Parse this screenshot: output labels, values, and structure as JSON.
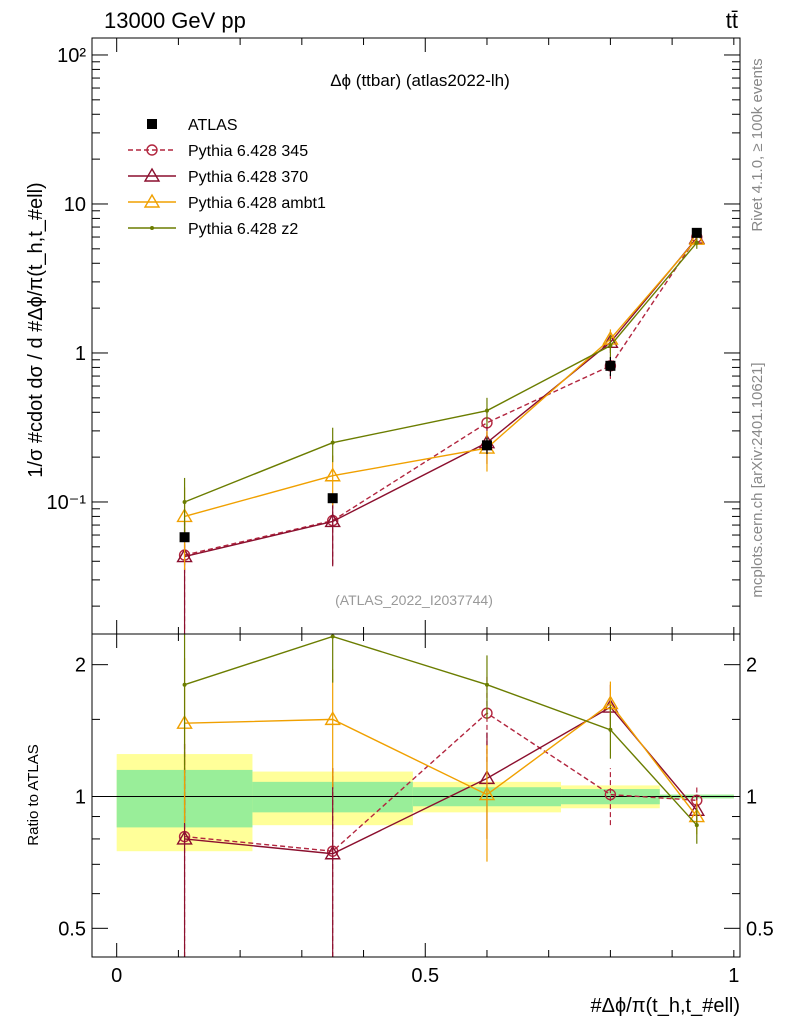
{
  "header": {
    "energy": "13000 GeV pp",
    "process": "tt̄"
  },
  "side": {
    "rivet": "Rivet 4.1.0, ≥ 100k events",
    "arxiv": "mcplots.cern.ch [arXiv:2401.10621]"
  },
  "main": {
    "title": "Δϕ (ttbar) (atlas2022-lh)",
    "analysis": "(ATLAS_2022_I2037744)"
  },
  "chart_data": {
    "type": "line",
    "title": "Δϕ (ttbar) (atlas2022-lh)",
    "ylabel_top": "1/σ #cdot dσ / d #Δϕ/π(t_h,t_#ell)",
    "ylabel_bottom": "Ratio to ATLAS",
    "xlabel": "#Δϕ/π(t_h,t_#ell)",
    "xlim": [
      -0.04,
      1.01
    ],
    "ylim_top": [
      0.013,
      130
    ],
    "ylim_bottom": [
      0.43,
      2.35
    ],
    "x_ticks": [
      {
        "v": 0,
        "label": "0"
      },
      {
        "v": 0.5,
        "label": "0.5"
      },
      {
        "v": 1,
        "label": "1"
      }
    ],
    "y_ticks_top": [
      {
        "v": 0.1,
        "label": "10⁻¹"
      },
      {
        "v": 1,
        "label": "1"
      },
      {
        "v": 10,
        "label": "10"
      },
      {
        "v": 100,
        "label": "10²"
      }
    ],
    "y_ticks_bottom": [
      {
        "v": 0.5,
        "label": "0.5"
      },
      {
        "v": 1,
        "label": "1"
      },
      {
        "v": 2,
        "label": "2"
      }
    ],
    "bins": [
      0,
      0.22,
      0.48,
      0.72,
      0.88,
      1.0
    ],
    "x": [
      0.11,
      0.35,
      0.6,
      0.8,
      0.94
    ],
    "data": {
      "name": "ATLAS",
      "values": [
        0.058,
        0.106,
        0.24,
        0.82,
        6.4
      ],
      "err": [
        0.0,
        0.0,
        0.03,
        0.12,
        0.35
      ]
    },
    "band_inner": [
      0.15,
      0.08,
      0.05,
      0.04,
      0.01
    ],
    "band_outer": [
      0.25,
      0.14,
      0.08,
      0.06,
      0.01
    ],
    "legend": [
      "ATLAS",
      "Pythia 6.428 345",
      "Pythia 6.428 370",
      "Pythia 6.428 ambt1",
      "Pythia 6.428 z2"
    ],
    "series": [
      {
        "name": "Pythia 6.428 345",
        "color": "#b2263f",
        "dashed": true,
        "marker": "circle",
        "values": [
          0.044,
          0.075,
          0.34,
          0.82,
          6.0
        ],
        "err": [
          0.03,
          0.037,
          0.1,
          0.15,
          0.5
        ],
        "ratio": [
          0.81,
          0.75,
          1.55,
          1.01,
          0.98
        ],
        "ratio_err": [
          0.52,
          0.42,
          0.35,
          0.15,
          0.08
        ]
      },
      {
        "name": "Pythia 6.428 370",
        "color": "#8b0f2e",
        "dashed": false,
        "marker": "triangle",
        "values": [
          0.043,
          0.074,
          0.25,
          1.18,
          5.9
        ],
        "err": [
          0.03,
          0.037,
          0.07,
          0.18,
          0.5
        ],
        "ratio": [
          0.8,
          0.74,
          1.1,
          1.6,
          0.93
        ],
        "ratio_err": [
          0.52,
          0.42,
          0.3,
          0.2,
          0.08
        ]
      },
      {
        "name": "Pythia 6.428 ambt1",
        "color": "#f0a000",
        "dashed": false,
        "marker": "triangle",
        "values": [
          0.08,
          0.15,
          0.23,
          1.24,
          5.8
        ],
        "err": [
          0.045,
          0.055,
          0.07,
          0.2,
          0.5
        ],
        "ratio": [
          1.47,
          1.5,
          1.01,
          1.63,
          0.9
        ],
        "ratio_err": [
          0.6,
          0.45,
          0.3,
          0.2,
          0.08
        ]
      },
      {
        "name": "Pythia 6.428 z2",
        "color": "#6b7d00",
        "dashed": false,
        "marker": "dot",
        "values": [
          0.1,
          0.25,
          0.41,
          1.12,
          5.5
        ],
        "err": [
          0.045,
          0.065,
          0.09,
          0.2,
          0.5
        ],
        "ratio": [
          1.8,
          2.32,
          1.8,
          1.42,
          0.86
        ],
        "ratio_err": [
          0.65,
          0.5,
          0.3,
          0.2,
          0.08
        ]
      }
    ]
  }
}
